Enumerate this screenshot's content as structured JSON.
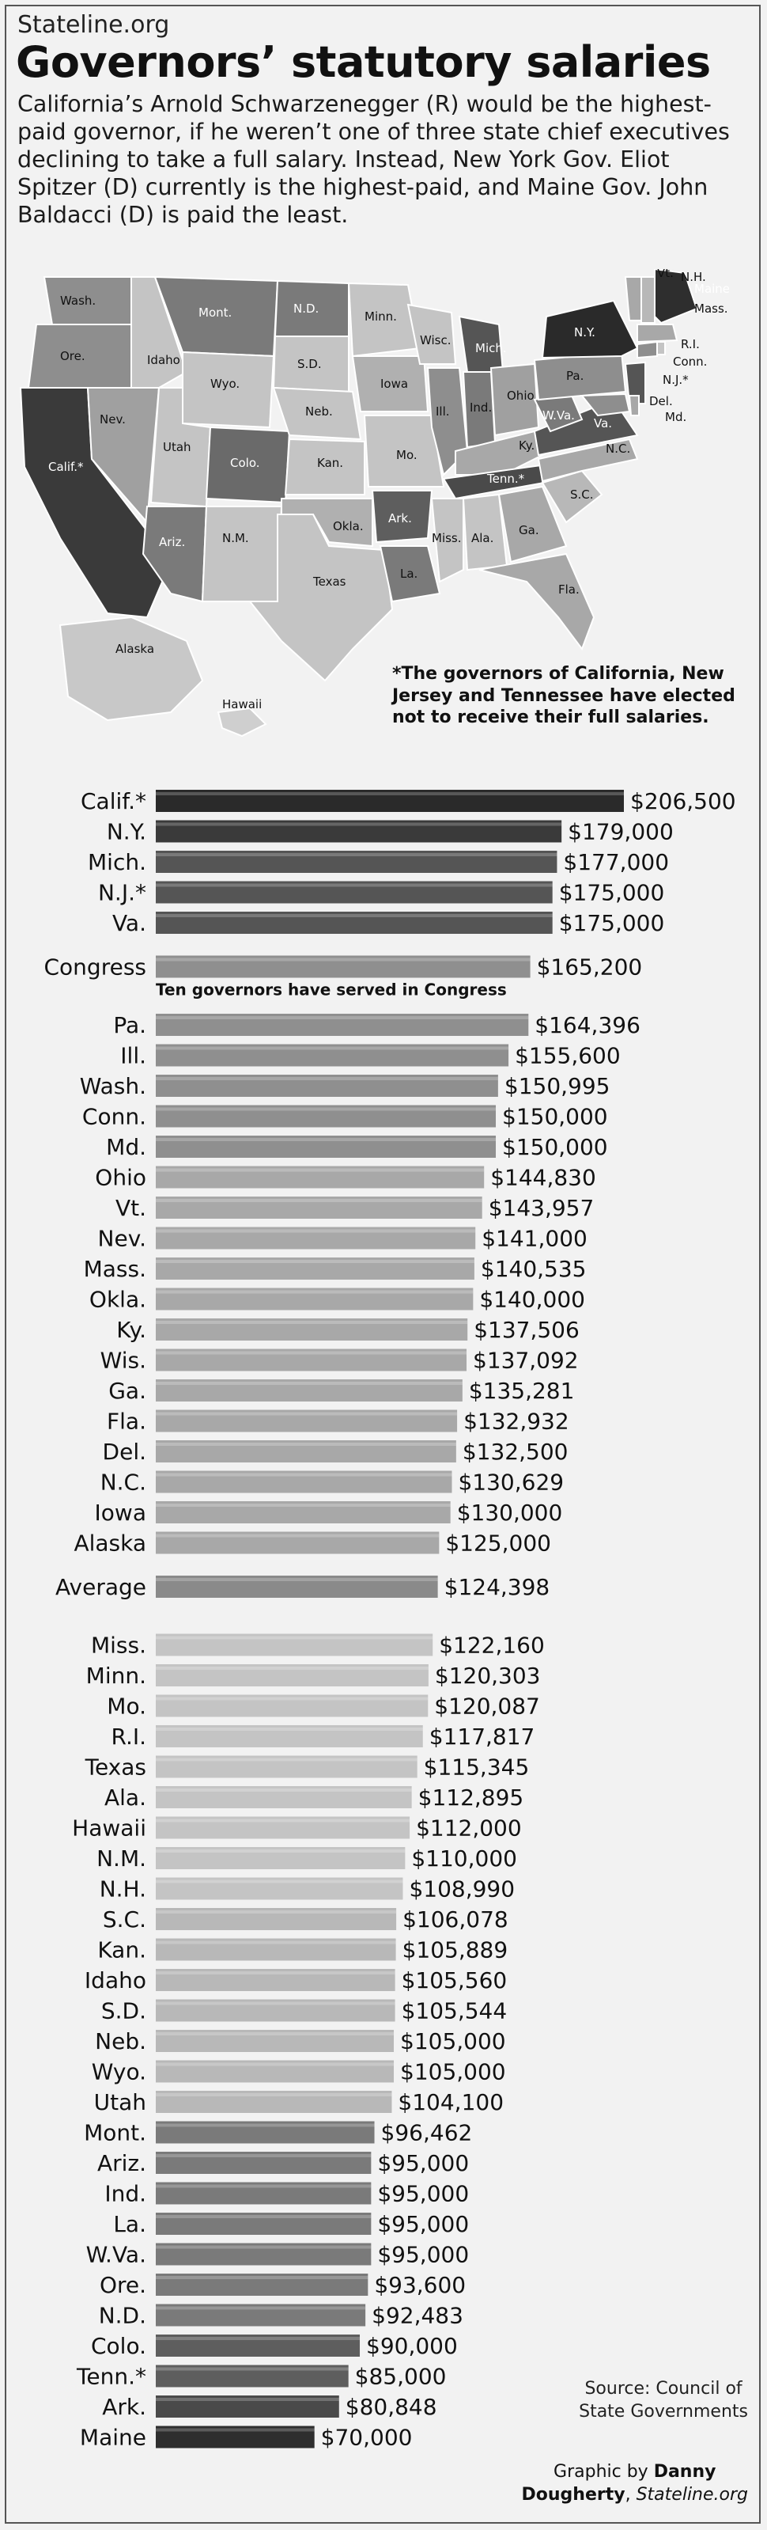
{
  "header": {
    "source": "Stateline.org",
    "title": "Governors’ statutory salaries",
    "intro": "California’s Arnold Schwarzenegger (R) would be the highest-paid governor, if he weren’t one of three state chief executives declining to take a full salary. Instead, New York Gov. Eliot Spitzer (D) currently is the highest-paid, and Maine Gov. John Baldacci (D) is paid the least."
  },
  "map": {
    "note": "*The governors of California, New Jersey and Tennessee have elected not to receive their full salaries.",
    "labels": [
      "Wash.",
      "Mont.",
      "N.D.",
      "Minn.",
      "Maine",
      "N.H.",
      "Vt.",
      "Mass.",
      "Ore.",
      "Idaho",
      "S.D.",
      "Wisc.",
      "Mich.",
      "N.Y.",
      "R.I.",
      "Conn.",
      "N.J.*",
      "Wyo.",
      "Iowa",
      "Pa.",
      "Del.",
      "Md.",
      "Nev.",
      "Neb.",
      "Ill.",
      "Ind.",
      "Ohio",
      "W.Va.",
      "Va.",
      "Utah",
      "Colo.",
      "Kan.",
      "Mo.",
      "Ky.",
      "N.C.",
      "Calif.*",
      "Ariz.",
      "N.M.",
      "Okla.",
      "Ark.",
      "Tenn.*",
      "S.C.",
      "Texas",
      "Miss.",
      "Ala.",
      "Ga.",
      "La.",
      "Fla.",
      "Alaska",
      "Hawaii"
    ]
  },
  "chart_data": {
    "type": "bar",
    "title": "Governors’ statutory salaries",
    "xlabel": "",
    "ylabel": "",
    "xlim": [
      0,
      206500
    ],
    "categories": [
      "Calif.*",
      "N.Y.",
      "Mich.",
      "N.J.*",
      "Va.",
      "Congress",
      "Pa.",
      "Ill.",
      "Wash.",
      "Conn.",
      "Md.",
      "Ohio",
      "Vt.",
      "Nev.",
      "Mass.",
      "Okla.",
      "Ky.",
      "Wis.",
      "Ga.",
      "Fla.",
      "Del.",
      "N.C.",
      "Iowa",
      "Alaska",
      "Average",
      "Miss.",
      "Minn.",
      "Mo.",
      "R.I.",
      "Texas",
      "Ala.",
      "Hawaii",
      "N.M.",
      "N.H.",
      "S.C.",
      "Kan.",
      "Idaho",
      "S.D.",
      "Neb.",
      "Wyo.",
      "Utah",
      "Mont.",
      "Ariz.",
      "Ind.",
      "La.",
      "W.Va.",
      "Ore.",
      "N.D.",
      "Colo.",
      "Tenn.*",
      "Ark.",
      "Maine"
    ],
    "values": [
      206500,
      179000,
      177000,
      175000,
      175000,
      165200,
      164396,
      155600,
      150995,
      150000,
      150000,
      144830,
      143957,
      141000,
      140535,
      140000,
      137506,
      137092,
      135281,
      132932,
      132500,
      130629,
      130000,
      125000,
      124398,
      122160,
      120303,
      120087,
      117817,
      115345,
      112895,
      112000,
      110000,
      108990,
      106078,
      105889,
      105560,
      105544,
      105000,
      105000,
      104100,
      96462,
      95000,
      95000,
      95000,
      95000,
      93600,
      92483,
      90000,
      85000,
      80848,
      70000
    ],
    "value_labels": [
      "$206,500",
      "$179,000",
      "$177,000",
      "$175,000",
      "$175,000",
      "$165,200",
      "$164,396",
      "$155,600",
      "$150,995",
      "$150,000",
      "$150,000",
      "$144,830",
      "$143,957",
      "$141,000",
      "$140,535",
      "$140,000",
      "$137,506",
      "$137,092",
      "$135,281",
      "$132,932",
      "$132,500",
      "$130,629",
      "$130,000",
      "$125,000",
      "$124,398",
      "$122,160",
      "$120,303",
      "$120,087",
      "$117,817",
      "$115,345",
      "$112,895",
      "$112,000",
      "$110,000",
      "$108,990",
      "$106,078",
      "$105,889",
      "$105,560",
      "$105,544",
      "$105,000",
      "$105,000",
      "$104,100",
      "$96,462",
      "$95,000",
      "$95,000",
      "$95,000",
      "$95,000",
      "$93,600",
      "$92,483",
      "$90,000",
      "$85,000",
      "$80,848",
      "$70,000"
    ],
    "colors": [
      "#2a2a2a",
      "#3a3a3a",
      "#555555",
      "#555555",
      "#555555",
      "#8f8f8f",
      "#8f8f8f",
      "#8f8f8f",
      "#8f8f8f",
      "#8f8f8f",
      "#8f8f8f",
      "#a8a8a8",
      "#a8a8a8",
      "#a8a8a8",
      "#a8a8a8",
      "#a8a8a8",
      "#a8a8a8",
      "#a8a8a8",
      "#a8a8a8",
      "#a8a8a8",
      "#a8a8a8",
      "#a8a8a8",
      "#a8a8a8",
      "#a8a8a8",
      "#8a8a8a",
      "#c4c4c4",
      "#c4c4c4",
      "#c4c4c4",
      "#c4c4c4",
      "#c4c4c4",
      "#c4c4c4",
      "#c4c4c4",
      "#c4c4c4",
      "#c4c4c4",
      "#b8b8b8",
      "#b8b8b8",
      "#b8b8b8",
      "#b8b8b8",
      "#b8b8b8",
      "#b8b8b8",
      "#b8b8b8",
      "#7a7a7a",
      "#7a7a7a",
      "#7a7a7a",
      "#7a7a7a",
      "#7a7a7a",
      "#7a7a7a",
      "#7a7a7a",
      "#5e5e5e",
      "#5e5e5e",
      "#4a4a4a",
      "#2e2e2e"
    ],
    "annotation": "Ten governors have served in Congress",
    "grid": false,
    "legend": "none"
  },
  "footer": {
    "source_line1": "Source: Council of",
    "source_line2": "State Governments",
    "credit_prefix": "Graphic by ",
    "credit_name1": "Danny",
    "credit_name2": "Dougherty",
    "credit_sep": ", ",
    "credit_outlet": "Stateline.org"
  }
}
